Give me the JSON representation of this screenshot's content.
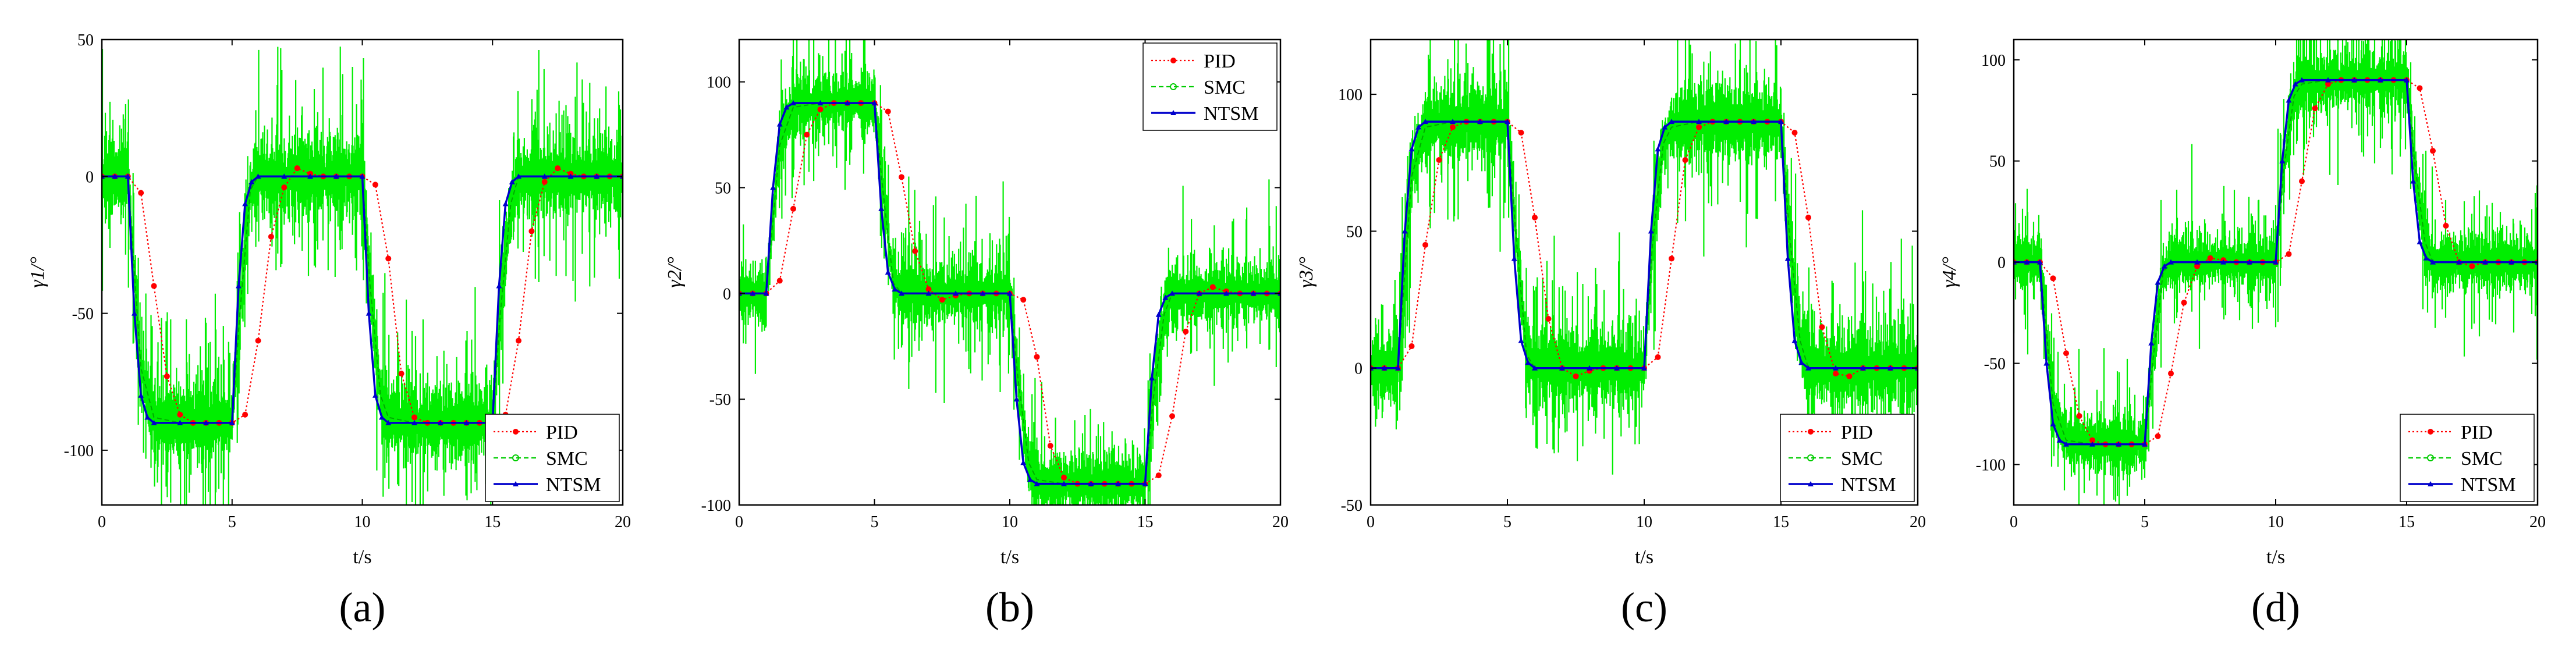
{
  "figure": {
    "panels": [
      "a",
      "b",
      "c",
      "d"
    ]
  },
  "colors": {
    "PID": "#ff0000",
    "SMC": "#00ee00",
    "NTSM": "#0000cc"
  },
  "chart_data": [
    {
      "type": "line",
      "panel": "a",
      "caption": "(a)",
      "xlabel": "t/s",
      "ylabel": "γ1/°",
      "ylabel_sub": "1",
      "xlim": [
        0,
        20
      ],
      "ylim": [
        -120,
        50
      ],
      "xticks": [
        0,
        5,
        10,
        15,
        20
      ],
      "yticks": [
        50,
        0,
        -50,
        -100
      ],
      "legend": [
        "PID",
        "SMC",
        "NTSM"
      ],
      "legend_position": "bottom-right",
      "reference_levels": [
        [
          0,
          0
        ],
        [
          1,
          -90
        ],
        [
          5,
          0
        ],
        [
          10,
          -90
        ],
        [
          15,
          0
        ],
        [
          20,
          0
        ]
      ],
      "series": [
        {
          "name": "PID",
          "x": [
            0,
            0.5,
            1,
            1.5,
            2,
            2.5,
            3,
            3.5,
            4,
            4.5,
            5,
            5.5,
            6,
            6.5,
            7,
            7.5,
            8,
            8.5,
            9,
            9.5,
            10,
            10.5,
            11,
            11.5,
            12,
            12.5,
            13,
            13.5,
            14,
            14.5,
            15,
            15.5,
            16,
            16.5,
            17,
            17.5,
            18,
            18.5,
            19,
            19.5,
            20
          ],
          "y": [
            0,
            0,
            0,
            -6,
            -40,
            -73,
            -87,
            -90,
            -90,
            -90,
            -90,
            -87,
            -60,
            -22,
            -4,
            3,
            1,
            0,
            0,
            0,
            0,
            -3,
            -30,
            -72,
            -88,
            -90,
            -90,
            -90,
            -90,
            -90,
            -90,
            -87,
            -60,
            -20,
            -2,
            3,
            1,
            0,
            0,
            0,
            0
          ]
        },
        {
          "name": "SMC",
          "x": [
            0,
            0.5,
            1,
            1.5,
            2,
            3,
            4,
            5,
            5.3,
            5.7,
            6,
            7,
            8,
            9,
            10,
            10.3,
            10.7,
            11,
            12,
            13,
            14,
            15,
            15.3,
            15.7,
            16,
            17,
            18,
            19,
            20
          ],
          "y": [
            0,
            0,
            0,
            -70,
            -88,
            -90,
            -90,
            -90,
            -50,
            -5,
            0,
            0,
            0,
            0,
            0,
            -40,
            -80,
            -88,
            -90,
            -90,
            -90,
            -90,
            -50,
            -10,
            0,
            0,
            0,
            0,
            0
          ]
        },
        {
          "name": "NTSM",
          "x": [
            0,
            0.5,
            1,
            1.25,
            1.5,
            1.75,
            2,
            3,
            4,
            5,
            5.25,
            5.5,
            5.75,
            6,
            7,
            8,
            9,
            10,
            10.25,
            10.5,
            10.75,
            11,
            12,
            13,
            14,
            15,
            15.25,
            15.5,
            15.75,
            16,
            17,
            18,
            19,
            20
          ],
          "y": [
            0,
            0,
            0,
            -50,
            -80,
            -88,
            -90,
            -90,
            -90,
            -90,
            -40,
            -10,
            -2,
            0,
            0,
            0,
            0,
            0,
            -50,
            -80,
            -88,
            -90,
            -90,
            -90,
            -90,
            -90,
            -40,
            -10,
            -2,
            0,
            0,
            0,
            0,
            0
          ]
        }
      ]
    },
    {
      "type": "line",
      "panel": "b",
      "caption": "(b)",
      "xlabel": "t/s",
      "ylabel": "γ2/°",
      "ylabel_sub": "2",
      "xlim": [
        0,
        20
      ],
      "ylim": [
        -100,
        120
      ],
      "xticks": [
        0,
        5,
        10,
        15,
        20
      ],
      "yticks": [
        100,
        50,
        0,
        -50,
        -100
      ],
      "legend": [
        "PID",
        "SMC",
        "NTSM"
      ],
      "legend_position": "top-right",
      "reference_levels": [
        [
          0,
          0
        ],
        [
          1,
          90
        ],
        [
          5,
          0
        ],
        [
          10,
          -90
        ],
        [
          15,
          0
        ],
        [
          20,
          0
        ]
      ],
      "series": [
        {
          "name": "PID",
          "x": [
            0,
            0.5,
            1,
            1.5,
            2,
            2.5,
            3,
            3.5,
            4,
            4.5,
            5,
            5.5,
            6,
            6.5,
            7,
            7.5,
            8,
            8.5,
            9,
            9.5,
            10,
            10.5,
            11,
            11.5,
            12,
            12.5,
            13,
            13.5,
            14,
            14.5,
            15,
            15.5,
            16,
            16.5,
            17,
            17.5,
            18,
            18.5,
            19,
            19.5,
            20
          ],
          "y": [
            0,
            0,
            0,
            6,
            40,
            75,
            87,
            90,
            90,
            90,
            90,
            86,
            55,
            20,
            2,
            -3,
            -1,
            0,
            0,
            0,
            0,
            -3,
            -30,
            -72,
            -87,
            -90,
            -90,
            -90,
            -90,
            -90,
            -90,
            -86,
            -58,
            -18,
            0,
            3,
            1,
            0,
            0,
            0,
            0
          ]
        },
        {
          "name": "SMC",
          "x": [
            0,
            0.5,
            1,
            1.5,
            2,
            3,
            4,
            5,
            5.3,
            5.7,
            6,
            7,
            8,
            9,
            10,
            10.3,
            10.7,
            11,
            12,
            13,
            14,
            15,
            15.3,
            15.7,
            16,
            17,
            18,
            19,
            20
          ],
          "y": [
            0,
            0,
            0,
            70,
            88,
            90,
            90,
            90,
            50,
            5,
            0,
            0,
            0,
            0,
            0,
            -40,
            -80,
            -88,
            -90,
            -90,
            -90,
            -90,
            -50,
            -10,
            0,
            0,
            0,
            0,
            0
          ]
        },
        {
          "name": "NTSM",
          "x": [
            0,
            0.5,
            1,
            1.25,
            1.5,
            1.75,
            2,
            3,
            4,
            5,
            5.25,
            5.5,
            5.75,
            6,
            7,
            8,
            9,
            10,
            10.25,
            10.5,
            10.75,
            11,
            12,
            13,
            14,
            15,
            15.25,
            15.5,
            15.75,
            16,
            17,
            18,
            19,
            20
          ],
          "y": [
            0,
            0,
            0,
            50,
            80,
            88,
            90,
            90,
            90,
            90,
            40,
            10,
            2,
            0,
            0,
            0,
            0,
            0,
            -50,
            -80,
            -88,
            -90,
            -90,
            -90,
            -90,
            -90,
            -40,
            -10,
            -2,
            0,
            0,
            0,
            0,
            0
          ]
        }
      ]
    },
    {
      "type": "line",
      "panel": "c",
      "caption": "(c)",
      "xlabel": "t/s",
      "ylabel": "γ3/°",
      "ylabel_sub": "3",
      "xlim": [
        0,
        20
      ],
      "ylim": [
        -50,
        120
      ],
      "xticks": [
        0,
        5,
        10,
        15,
        20
      ],
      "yticks": [
        100,
        50,
        0,
        -50
      ],
      "legend": [
        "PID",
        "SMC",
        "NTSM"
      ],
      "legend_position": "bottom-right",
      "reference_levels": [
        [
          0,
          0
        ],
        [
          1,
          90
        ],
        [
          5,
          0
        ],
        [
          10,
          90
        ],
        [
          15,
          0
        ],
        [
          20,
          0
        ]
      ],
      "series": [
        {
          "name": "PID",
          "x": [
            0,
            0.5,
            1,
            1.5,
            2,
            2.5,
            3,
            3.5,
            4,
            4.5,
            5,
            5.5,
            6,
            6.5,
            7,
            7.5,
            8,
            8.5,
            9,
            9.5,
            10,
            10.5,
            11,
            11.5,
            12,
            12.5,
            13,
            13.5,
            14,
            14.5,
            15,
            15.5,
            16,
            16.5,
            17,
            17.5,
            18,
            18.5,
            19,
            19.5,
            20
          ],
          "y": [
            0,
            0,
            0,
            8,
            45,
            76,
            88,
            90,
            90,
            90,
            90,
            86,
            55,
            18,
            0,
            -3,
            -1,
            0,
            0,
            0,
            0,
            4,
            40,
            76,
            88,
            90,
            90,
            90,
            90,
            90,
            90,
            86,
            55,
            15,
            -2,
            -3,
            0,
            0,
            0,
            0,
            0
          ]
        },
        {
          "name": "SMC",
          "x": [
            0,
            0.5,
            1,
            1.5,
            2,
            3,
            4,
            5,
            5.3,
            5.7,
            6,
            7,
            8,
            9,
            10,
            10.3,
            10.7,
            11,
            12,
            13,
            14,
            15,
            15.3,
            15.7,
            16,
            17,
            18,
            19,
            20
          ],
          "y": [
            0,
            0,
            0,
            70,
            88,
            90,
            90,
            90,
            50,
            5,
            0,
            0,
            0,
            0,
            0,
            45,
            82,
            88,
            90,
            90,
            90,
            90,
            50,
            10,
            0,
            0,
            0,
            0,
            0
          ]
        },
        {
          "name": "NTSM",
          "x": [
            0,
            0.5,
            1,
            1.25,
            1.5,
            1.75,
            2,
            3,
            4,
            5,
            5.25,
            5.5,
            5.75,
            6,
            7,
            8,
            9,
            10,
            10.25,
            10.5,
            10.75,
            11,
            12,
            13,
            14,
            15,
            15.25,
            15.5,
            15.75,
            16,
            17,
            18,
            19,
            20
          ],
          "y": [
            0,
            0,
            0,
            50,
            80,
            88,
            90,
            90,
            90,
            90,
            40,
            10,
            2,
            0,
            0,
            0,
            0,
            0,
            50,
            80,
            88,
            90,
            90,
            90,
            90,
            90,
            40,
            10,
            2,
            0,
            0,
            0,
            0,
            0
          ]
        }
      ]
    },
    {
      "type": "line",
      "panel": "d",
      "caption": "(d)",
      "xlabel": "t/s",
      "ylabel": "γ4/°",
      "ylabel_sub": "4",
      "xlim": [
        0,
        20
      ],
      "ylim": [
        -120,
        110
      ],
      "xticks": [
        0,
        5,
        10,
        15,
        20
      ],
      "yticks": [
        100,
        50,
        0,
        -50,
        -100
      ],
      "legend": [
        "PID",
        "SMC",
        "NTSM"
      ],
      "legend_position": "bottom-right",
      "reference_levels": [
        [
          0,
          0
        ],
        [
          1,
          -90
        ],
        [
          5,
          0
        ],
        [
          10,
          90
        ],
        [
          15,
          0
        ],
        [
          20,
          0
        ]
      ],
      "series": [
        {
          "name": "PID",
          "x": [
            0,
            0.5,
            1,
            1.5,
            2,
            2.5,
            3,
            3.5,
            4,
            4.5,
            5,
            5.5,
            6,
            6.5,
            7,
            7.5,
            8,
            8.5,
            9,
            9.5,
            10,
            10.5,
            11,
            11.5,
            12,
            12.5,
            13,
            13.5,
            14,
            14.5,
            15,
            15.5,
            16,
            16.5,
            17,
            17.5,
            18,
            18.5,
            19,
            19.5,
            20
          ],
          "y": [
            0,
            0,
            0,
            -8,
            -45,
            -76,
            -88,
            -90,
            -90,
            -90,
            -90,
            -86,
            -55,
            -20,
            -2,
            2,
            1,
            0,
            0,
            0,
            0,
            4,
            40,
            76,
            88,
            90,
            90,
            90,
            90,
            90,
            90,
            86,
            55,
            18,
            0,
            -2,
            0,
            0,
            0,
            0,
            0
          ]
        },
        {
          "name": "SMC",
          "x": [
            0,
            0.5,
            1,
            1.5,
            2,
            3,
            4,
            5,
            5.3,
            5.7,
            6,
            7,
            8,
            9,
            10,
            10.3,
            10.7,
            11,
            12,
            13,
            14,
            15,
            15.3,
            15.7,
            16,
            17,
            18,
            19,
            20
          ],
          "y": [
            0,
            0,
            0,
            -70,
            -88,
            -90,
            -90,
            -90,
            -50,
            -5,
            0,
            0,
            0,
            0,
            0,
            45,
            82,
            88,
            90,
            90,
            90,
            90,
            50,
            10,
            0,
            0,
            0,
            0,
            0
          ]
        },
        {
          "name": "NTSM",
          "x": [
            0,
            0.5,
            1,
            1.25,
            1.5,
            1.75,
            2,
            3,
            4,
            5,
            5.25,
            5.5,
            5.75,
            6,
            7,
            8,
            9,
            10,
            10.25,
            10.5,
            10.75,
            11,
            12,
            13,
            14,
            15,
            15.25,
            15.5,
            15.75,
            16,
            17,
            18,
            19,
            20
          ],
          "y": [
            0,
            0,
            0,
            -50,
            -80,
            -88,
            -90,
            -90,
            -90,
            -90,
            -40,
            -10,
            -2,
            0,
            0,
            0,
            0,
            0,
            50,
            80,
            88,
            90,
            90,
            90,
            90,
            90,
            40,
            10,
            2,
            0,
            0,
            0,
            0,
            0
          ]
        }
      ]
    }
  ]
}
